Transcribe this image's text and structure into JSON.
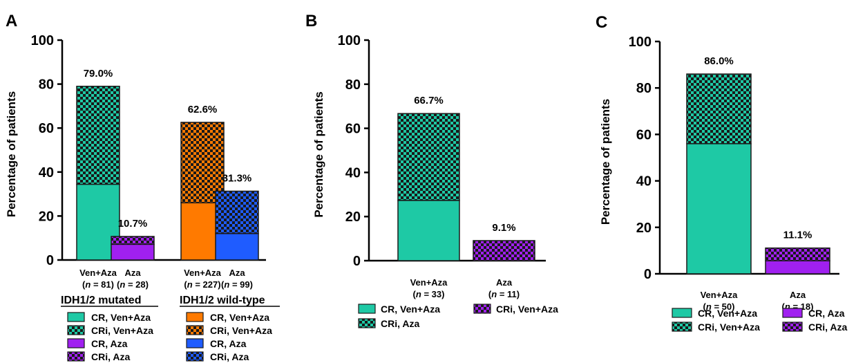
{
  "colors": {
    "teal": "#1ec9a5",
    "orange": "#ff7a00",
    "purple": "#a020f0",
    "blue": "#1f5cff",
    "border": "#1a1a1a",
    "checker_dark": "#1a1a1a"
  },
  "chart_data": [
    {
      "panel": "A",
      "type": "bar",
      "stacked": true,
      "ylabel": "Percentage of patients",
      "ylim": [
        0,
        100
      ],
      "yticks": [
        "0",
        "20",
        "40",
        "60",
        "80",
        "100"
      ],
      "bars": [
        {
          "label": "Ven+Aza",
          "n_prefix": "(",
          "n_italic": "n",
          "n_suffix": " = 81)",
          "total_label": "79.0%",
          "cr": 34.4,
          "total": 79.0,
          "solid_color": "teal",
          "pattern": "teal"
        },
        {
          "label": "Aza",
          "n_prefix": "(",
          "n_italic": "n",
          "n_suffix": " = 28)",
          "total_label": "10.7%",
          "cr": 7.1,
          "total": 10.7,
          "solid_color": "purple",
          "pattern": "purple"
        },
        {
          "label": "Ven+Aza",
          "n_prefix": "(",
          "n_italic": "n",
          "n_suffix": " = 227)",
          "total_label": "62.6%",
          "cr": 26.0,
          "total": 62.6,
          "solid_color": "orange",
          "pattern": "orange"
        },
        {
          "label": "Aza",
          "n_prefix": "(",
          "n_italic": "n",
          "n_suffix": " = 99)",
          "total_label": "31.3%",
          "cr": 12.0,
          "total": 31.3,
          "solid_color": "blue",
          "pattern": "blue"
        }
      ],
      "legend_groups": [
        {
          "title": "IDH1/2 mutated",
          "items": [
            {
              "label": "CR, Ven+Aza",
              "color": "teal",
              "checker": false
            },
            {
              "label": "CRi, Ven+Aza",
              "color": "teal",
              "checker": true
            },
            {
              "label": "CR, Aza",
              "color": "purple",
              "checker": false
            },
            {
              "label": "CRi, Aza",
              "color": "purple",
              "checker": true
            }
          ]
        },
        {
          "title": "IDH1/2 wild-type",
          "items": [
            {
              "label": "CR, Ven+Aza",
              "color": "orange",
              "checker": false
            },
            {
              "label": "CRi, Ven+Aza",
              "color": "orange",
              "checker": true
            },
            {
              "label": "CR, Aza",
              "color": "blue",
              "checker": false
            },
            {
              "label": "CRi, Aza",
              "color": "blue",
              "checker": true
            }
          ]
        }
      ]
    },
    {
      "panel": "B",
      "type": "bar",
      "stacked": true,
      "ylabel": "Percentage of patients",
      "ylim": [
        0,
        100
      ],
      "yticks": [
        "0",
        "20",
        "40",
        "60",
        "80",
        "100"
      ],
      "bars": [
        {
          "label": "Ven+Aza",
          "n_prefix": "(",
          "n_italic": "n",
          "n_suffix": " = 33)",
          "total_label": "66.7%",
          "cr": 27.3,
          "total": 66.7,
          "solid_color": "teal",
          "pattern": "teal"
        },
        {
          "label": "Aza",
          "n_prefix": "(",
          "n_italic": "n",
          "n_suffix": " = 11)",
          "total_label": "9.1%",
          "cr": 0,
          "total": 9.1,
          "solid_color": "purple",
          "pattern": "purple"
        }
      ],
      "legend_items": [
        {
          "label": "CR, Ven+Aza",
          "color": "teal",
          "checker": false
        },
        {
          "label": "CRi, Ven+Aza",
          "color": "purple",
          "checker": true
        },
        {
          "label": "CRi, Aza",
          "color": "teal",
          "checker": true
        }
      ]
    },
    {
      "panel": "C",
      "type": "bar",
      "stacked": true,
      "ylabel": "Percentage of patients",
      "ylim": [
        0,
        100
      ],
      "yticks": [
        "0",
        "20",
        "40",
        "60",
        "80",
        "100"
      ],
      "bars": [
        {
          "label": "Ven+Aza",
          "n_prefix": "(",
          "n_italic": "n",
          "n_suffix": " = 50)",
          "total_label": "86.0%",
          "cr": 56.0,
          "total": 86.0,
          "solid_color": "teal",
          "pattern": "teal"
        },
        {
          "label": "Aza",
          "n_prefix": "(",
          "n_italic": "n",
          "n_suffix": " = 18)",
          "total_label": "11.1%",
          "cr": 5.6,
          "total": 11.1,
          "solid_color": "purple",
          "pattern": "purple"
        }
      ],
      "legend_items": [
        {
          "label": "CR, Ven+Aza",
          "color": "teal",
          "checker": false
        },
        {
          "label": "CR, Aza",
          "color": "purple",
          "checker": false
        },
        {
          "label": "CRi, Ven+Aza",
          "color": "teal",
          "checker": true
        },
        {
          "label": "CRi, Aza",
          "color": "purple",
          "checker": true
        }
      ]
    }
  ]
}
